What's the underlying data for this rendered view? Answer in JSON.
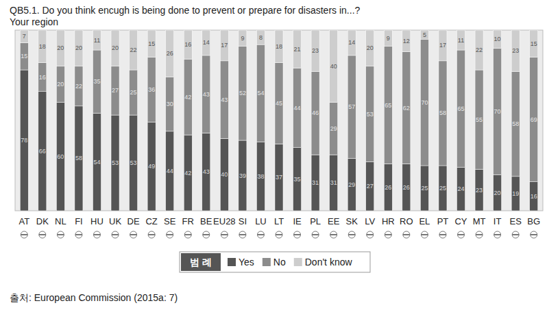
{
  "chart_data": {
    "type": "bar",
    "stacked": true,
    "data_labels": true,
    "tick_labels": "x",
    "legend": "bottom",
    "title": "QB5.1. Do you think encugh is being done to prevent or prepare for disasters in...?",
    "subtitle": "Your region",
    "legend_title": "범 례",
    "source": "출처: European Commission (2015a: 7)",
    "categories": [
      "AT",
      "DK",
      "NL",
      "FI",
      "HU",
      "UK",
      "DE",
      "CZ",
      "SE",
      "FR",
      "BE",
      "EU28",
      "SI",
      "LU",
      "LT",
      "IE",
      "PL",
      "EE",
      "SK",
      "LV",
      "HR",
      "RO",
      "EL",
      "PT",
      "CY",
      "MT",
      "IT",
      "ES",
      "BG"
    ],
    "ylim": [
      0,
      100
    ],
    "series": [
      {
        "name": "Yes",
        "color": "#555555",
        "values": [
          78,
          66,
          60,
          58,
          54,
          53,
          53,
          49,
          44,
          42,
          43,
          40,
          39,
          38,
          37,
          35,
          31,
          31,
          29,
          27,
          26,
          26,
          25,
          25,
          24,
          23,
          20,
          19,
          16
        ]
      },
      {
        "name": "No",
        "color": "#8c8c8c",
        "values": [
          15,
          16,
          20,
          22,
          35,
          27,
          25,
          36,
          30,
          42,
          43,
          43,
          52,
          54,
          45,
          44,
          46,
          29,
          57,
          53,
          65,
          62,
          70,
          58,
          65,
          55,
          70,
          58,
          69
        ]
      },
      {
        "name": "Don't know",
        "color": "#cdcdcd",
        "values": [
          7,
          18,
          20,
          20,
          11,
          20,
          22,
          15,
          26,
          16,
          14,
          17,
          9,
          8,
          18,
          21,
          23,
          40,
          14,
          20,
          9,
          12,
          5,
          17,
          11,
          22,
          10,
          23,
          15
        ]
      }
    ]
  }
}
